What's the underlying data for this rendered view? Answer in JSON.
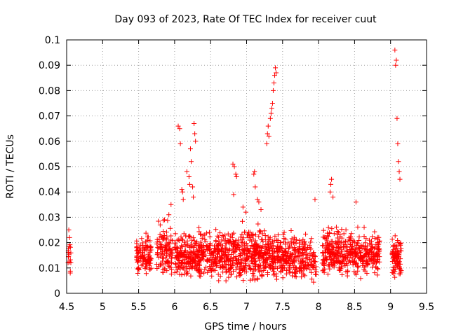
{
  "chart_data": {
    "type": "scatter",
    "title": "Day 093 of 2023, Rate Of TEC Index for receiver cuut",
    "xlabel": "GPS time / hours",
    "ylabel": "ROTI / TECUs",
    "xlim": [
      4.5,
      9.5
    ],
    "ylim": [
      0,
      0.1
    ],
    "x_ticks": [
      "4.5",
      "5",
      "5.5",
      "6",
      "6.5",
      "7",
      "7.5",
      "8",
      "8.5",
      "9",
      "9.5"
    ],
    "y_ticks": [
      "0",
      "0.01",
      "0.02",
      "0.03",
      "0.04",
      "0.05",
      "0.06",
      "0.07",
      "0.08",
      "0.09",
      "0.1"
    ],
    "grid": true,
    "marker": "+",
    "color": "#ff0000",
    "series": [
      {
        "name": "ROTI",
        "clusters": [
          {
            "x_range": [
              4.52,
              4.56
            ],
            "y_range": [
              0.005,
              0.026
            ],
            "count": 14
          },
          {
            "x_range": [
              5.47,
              5.68
            ],
            "y_range": [
              0.006,
              0.026
            ],
            "count": 110
          },
          {
            "x_range": [
              5.75,
              5.97
            ],
            "y_range": [
              0.005,
              0.031
            ],
            "count": 110
          },
          {
            "x_range": [
              6.0,
              6.75
            ],
            "y_range": [
              0.004,
              0.028
            ],
            "count": 420
          },
          {
            "x_range": [
              6.75,
              7.25
            ],
            "y_range": [
              0.003,
              0.03
            ],
            "count": 300
          },
          {
            "x_range": [
              7.25,
              7.9
            ],
            "y_range": [
              0.004,
              0.027
            ],
            "count": 340
          },
          {
            "x_range": [
              7.9,
              7.97
            ],
            "y_range": [
              0.003,
              0.021
            ],
            "count": 25
          },
          {
            "x_range": [
              8.05,
              8.85
            ],
            "y_range": [
              0.005,
              0.029
            ],
            "count": 420
          },
          {
            "x_range": [
              9.02,
              9.15
            ],
            "y_range": [
              0.004,
              0.026
            ],
            "count": 90
          }
        ],
        "points": [
          [
            4.53,
            0.025
          ],
          [
            4.54,
            0.022
          ],
          [
            4.52,
            0.012
          ],
          [
            4.55,
            0.008
          ],
          [
            5.86,
            0.029
          ],
          [
            5.92,
            0.031
          ],
          [
            5.95,
            0.035
          ],
          [
            5.8,
            0.027
          ],
          [
            6.05,
            0.066
          ],
          [
            6.07,
            0.065
          ],
          [
            6.08,
            0.059
          ],
          [
            6.1,
            0.041
          ],
          [
            6.11,
            0.04
          ],
          [
            6.12,
            0.037
          ],
          [
            6.17,
            0.048
          ],
          [
            6.2,
            0.046
          ],
          [
            6.21,
            0.043
          ],
          [
            6.22,
            0.057
          ],
          [
            6.23,
            0.052
          ],
          [
            6.25,
            0.042
          ],
          [
            6.26,
            0.038
          ],
          [
            6.27,
            0.067
          ],
          [
            6.28,
            0.063
          ],
          [
            6.29,
            0.06
          ],
          [
            6.81,
            0.051
          ],
          [
            6.83,
            0.05
          ],
          [
            6.85,
            0.047
          ],
          [
            6.86,
            0.046
          ],
          [
            6.82,
            0.039
          ],
          [
            6.95,
            0.034
          ],
          [
            6.99,
            0.032
          ],
          [
            7.1,
            0.047
          ],
          [
            7.11,
            0.048
          ],
          [
            7.12,
            0.042
          ],
          [
            7.15,
            0.037
          ],
          [
            7.17,
            0.036
          ],
          [
            7.2,
            0.033
          ],
          [
            7.28,
            0.059
          ],
          [
            7.29,
            0.063
          ],
          [
            7.3,
            0.066
          ],
          [
            7.31,
            0.062
          ],
          [
            7.33,
            0.069
          ],
          [
            7.34,
            0.071
          ],
          [
            7.35,
            0.073
          ],
          [
            7.36,
            0.075
          ],
          [
            7.37,
            0.08
          ],
          [
            7.38,
            0.083
          ],
          [
            7.39,
            0.086
          ],
          [
            7.4,
            0.089
          ],
          [
            7.41,
            0.087
          ],
          [
            7.95,
            0.037
          ],
          [
            8.16,
            0.04
          ],
          [
            8.17,
            0.043
          ],
          [
            8.18,
            0.045
          ],
          [
            8.2,
            0.038
          ],
          [
            8.52,
            0.036
          ],
          [
            9.06,
            0.096
          ],
          [
            9.07,
            0.09
          ],
          [
            9.08,
            0.092
          ],
          [
            9.09,
            0.069
          ],
          [
            9.1,
            0.059
          ],
          [
            9.11,
            0.052
          ],
          [
            9.12,
            0.048
          ],
          [
            9.13,
            0.045
          ]
        ]
      }
    ]
  }
}
